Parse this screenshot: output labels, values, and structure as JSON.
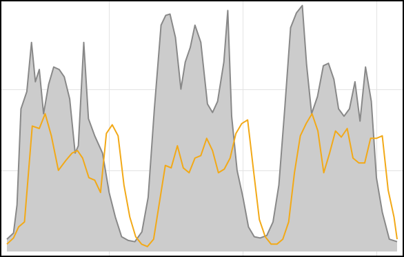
{
  "chart_data": {
    "type": "area",
    "title": "",
    "xlabel": "",
    "ylabel": "",
    "grid": true,
    "legend": "none",
    "xlim": [
      0,
      1
    ],
    "ylim": [
      0,
      1
    ],
    "series": [
      {
        "kind": "area",
        "color": "#888888",
        "fill": "#cccccc",
        "values": [
          [
            0.0,
            0.05
          ],
          [
            0.017,
            0.075
          ],
          [
            0.026,
            0.19
          ],
          [
            0.036,
            0.58
          ],
          [
            0.051,
            0.65
          ],
          [
            0.063,
            0.85
          ],
          [
            0.073,
            0.69
          ],
          [
            0.083,
            0.74
          ],
          [
            0.094,
            0.56
          ],
          [
            0.107,
            0.68
          ],
          [
            0.12,
            0.75
          ],
          [
            0.134,
            0.74
          ],
          [
            0.147,
            0.71
          ],
          [
            0.161,
            0.62
          ],
          [
            0.175,
            0.4
          ],
          [
            0.183,
            0.43
          ],
          [
            0.197,
            0.85
          ],
          [
            0.209,
            0.54
          ],
          [
            0.225,
            0.47
          ],
          [
            0.245,
            0.4
          ],
          [
            0.262,
            0.24
          ],
          [
            0.278,
            0.14
          ],
          [
            0.294,
            0.06
          ],
          [
            0.311,
            0.045
          ],
          [
            0.328,
            0.04
          ],
          [
            0.346,
            0.08
          ],
          [
            0.362,
            0.22
          ],
          [
            0.378,
            0.58
          ],
          [
            0.395,
            0.92
          ],
          [
            0.407,
            0.96
          ],
          [
            0.418,
            0.965
          ],
          [
            0.432,
            0.87
          ],
          [
            0.446,
            0.66
          ],
          [
            0.457,
            0.77
          ],
          [
            0.47,
            0.83
          ],
          [
            0.482,
            0.92
          ],
          [
            0.497,
            0.85
          ],
          [
            0.514,
            0.6
          ],
          [
            0.527,
            0.565
          ],
          [
            0.54,
            0.61
          ],
          [
            0.556,
            0.77
          ],
          [
            0.566,
            0.98
          ],
          [
            0.576,
            0.55
          ],
          [
            0.59,
            0.33
          ],
          [
            0.605,
            0.22
          ],
          [
            0.619,
            0.1
          ],
          [
            0.634,
            0.06
          ],
          [
            0.649,
            0.055
          ],
          [
            0.666,
            0.065
          ],
          [
            0.682,
            0.12
          ],
          [
            0.697,
            0.27
          ],
          [
            0.712,
            0.58
          ],
          [
            0.727,
            0.91
          ],
          [
            0.742,
            0.97
          ],
          [
            0.757,
            1.0
          ],
          [
            0.768,
            0.76
          ],
          [
            0.781,
            0.56
          ],
          [
            0.796,
            0.63
          ],
          [
            0.811,
            0.755
          ],
          [
            0.824,
            0.765
          ],
          [
            0.838,
            0.7
          ],
          [
            0.85,
            0.58
          ],
          [
            0.864,
            0.55
          ],
          [
            0.878,
            0.58
          ],
          [
            0.892,
            0.69
          ],
          [
            0.905,
            0.53
          ],
          [
            0.919,
            0.75
          ],
          [
            0.934,
            0.61
          ],
          [
            0.947,
            0.3
          ],
          [
            0.962,
            0.16
          ],
          [
            0.98,
            0.05
          ],
          [
            1.0,
            0.04
          ]
        ]
      },
      {
        "kind": "line",
        "color": "#f2a917",
        "values": [
          [
            0.0,
            0.03
          ],
          [
            0.017,
            0.055
          ],
          [
            0.03,
            0.1
          ],
          [
            0.045,
            0.12
          ],
          [
            0.065,
            0.51
          ],
          [
            0.083,
            0.5
          ],
          [
            0.098,
            0.56
          ],
          [
            0.114,
            0.47
          ],
          [
            0.132,
            0.33
          ],
          [
            0.151,
            0.37
          ],
          [
            0.167,
            0.4
          ],
          [
            0.181,
            0.41
          ],
          [
            0.194,
            0.38
          ],
          [
            0.21,
            0.3
          ],
          [
            0.225,
            0.29
          ],
          [
            0.24,
            0.24
          ],
          [
            0.255,
            0.48
          ],
          [
            0.27,
            0.515
          ],
          [
            0.285,
            0.47
          ],
          [
            0.3,
            0.27
          ],
          [
            0.315,
            0.14
          ],
          [
            0.33,
            0.06
          ],
          [
            0.345,
            0.03
          ],
          [
            0.36,
            0.02
          ],
          [
            0.376,
            0.05
          ],
          [
            0.391,
            0.2
          ],
          [
            0.406,
            0.35
          ],
          [
            0.421,
            0.34
          ],
          [
            0.437,
            0.43
          ],
          [
            0.452,
            0.34
          ],
          [
            0.467,
            0.32
          ],
          [
            0.482,
            0.38
          ],
          [
            0.497,
            0.39
          ],
          [
            0.512,
            0.46
          ],
          [
            0.527,
            0.41
          ],
          [
            0.542,
            0.32
          ],
          [
            0.557,
            0.335
          ],
          [
            0.572,
            0.38
          ],
          [
            0.587,
            0.48
          ],
          [
            0.602,
            0.52
          ],
          [
            0.617,
            0.535
          ],
          [
            0.632,
            0.33
          ],
          [
            0.647,
            0.13
          ],
          [
            0.662,
            0.06
          ],
          [
            0.677,
            0.03
          ],
          [
            0.692,
            0.03
          ],
          [
            0.707,
            0.05
          ],
          [
            0.722,
            0.12
          ],
          [
            0.737,
            0.32
          ],
          [
            0.752,
            0.47
          ],
          [
            0.767,
            0.52
          ],
          [
            0.782,
            0.56
          ],
          [
            0.797,
            0.49
          ],
          [
            0.812,
            0.32
          ],
          [
            0.827,
            0.4
          ],
          [
            0.842,
            0.49
          ],
          [
            0.857,
            0.465
          ],
          [
            0.872,
            0.5
          ],
          [
            0.887,
            0.38
          ],
          [
            0.902,
            0.36
          ],
          [
            0.917,
            0.36
          ],
          [
            0.932,
            0.46
          ],
          [
            0.947,
            0.46
          ],
          [
            0.962,
            0.47
          ],
          [
            0.977,
            0.25
          ],
          [
            0.992,
            0.14
          ],
          [
            1.0,
            0.05
          ]
        ]
      }
    ]
  }
}
